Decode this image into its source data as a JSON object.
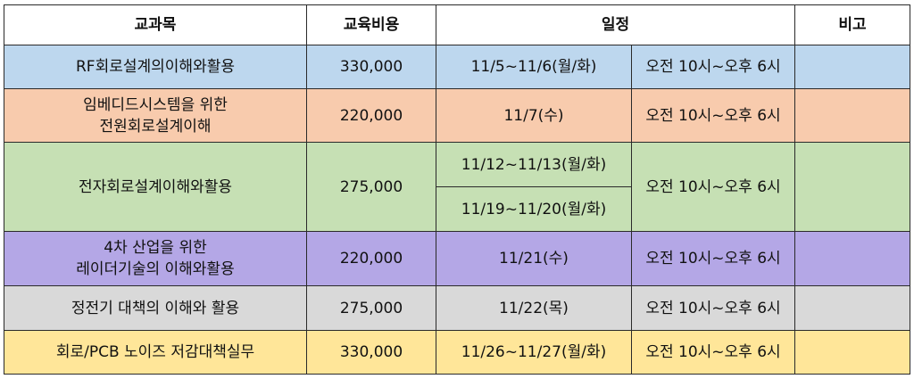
{
  "headers": {
    "course": "교과목",
    "cost": "교육비용",
    "schedule": "일정",
    "note": "비고"
  },
  "rows": [
    {
      "title_lines": [
        "RF회로설계의이해와활용"
      ],
      "cost": "330,000",
      "dates": "11/5~11/6(월/화)",
      "time": "오전 10시~오후 6시",
      "note": ""
    },
    {
      "title_lines": [
        "임베디드시스템을 위한",
        "전원회로설계이해"
      ],
      "cost": "220,000",
      "dates": "11/7(수)",
      "time": "오전 10시~오후 6시",
      "note": ""
    },
    {
      "title_lines": [
        "전자회로설계이해와활용"
      ],
      "cost": "275,000",
      "dates_a": "11/12~11/13(월/화)",
      "dates_b": "11/19~11/20(월/화)",
      "time": "오전 10시~오후 6시",
      "note": ""
    },
    {
      "title_lines": [
        "4차 산업을 위한",
        "레이더기술의 이해와활용"
      ],
      "cost": "220,000",
      "dates": "11/21(수)",
      "time": "오전 10시~오후 6시",
      "note": ""
    },
    {
      "title_lines": [
        "정전기 대책의 이해와 활용"
      ],
      "cost": "275,000",
      "dates": "11/22(목)",
      "time": "오전 10시~오후 6시",
      "note": ""
    },
    {
      "title_lines": [
        "회로/PCB 노이즈 저감대책실무"
      ],
      "cost": "330,000",
      "dates": "11/26~11/27(월/화)",
      "time": "오전 10시~오후 6시",
      "note": ""
    }
  ],
  "colors": {
    "row1": "#bdd7ee",
    "row2": "#f8cbad",
    "row3": "#c6e0b4",
    "row4": "#b4a7e6",
    "row5": "#d9d9d9",
    "row6": "#ffe699"
  }
}
